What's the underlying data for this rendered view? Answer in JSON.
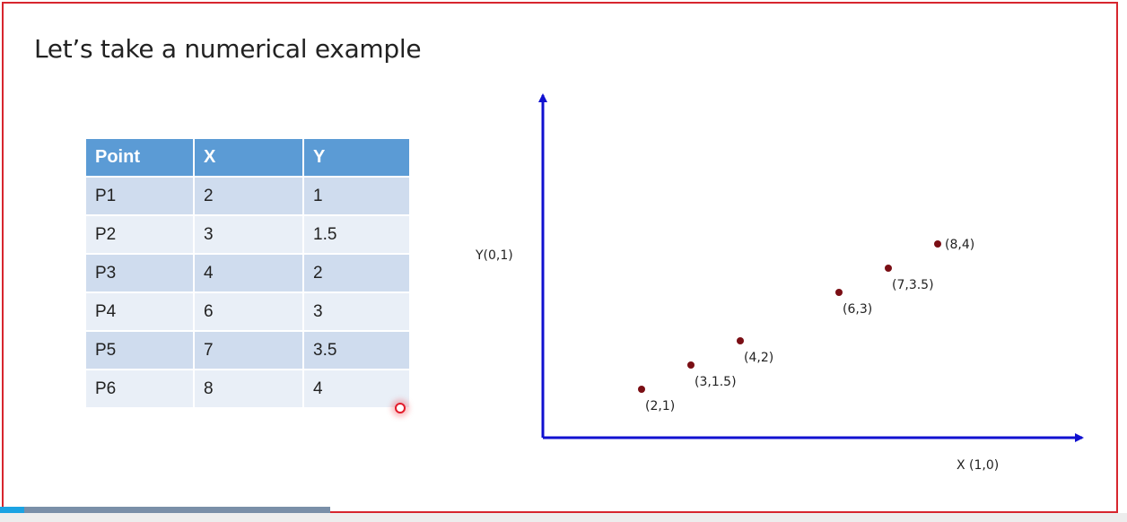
{
  "slide": {
    "title": "Let’s take a numerical example"
  },
  "table": {
    "headers": [
      "Point",
      "X",
      "Y"
    ],
    "rows": [
      [
        "P1",
        "2",
        "1"
      ],
      [
        "P2",
        "3",
        "1.5"
      ],
      [
        "P3",
        "4",
        "2"
      ],
      [
        "P4",
        "6",
        "3"
      ],
      [
        "P5",
        "7",
        "3.5"
      ],
      [
        "P6",
        "8",
        "4"
      ]
    ]
  },
  "chart_data": {
    "type": "scatter",
    "title": "",
    "xlabel": "X (1,0)",
    "ylabel": "Y(0,1)",
    "xlim": [
      0,
      11
    ],
    "ylim": [
      0,
      5.5
    ],
    "grid": false,
    "legend": "none",
    "axis_color": "#1010d0",
    "point_color": "#7a0e14",
    "points": [
      {
        "x": 2,
        "y": 1,
        "label": "(2,1)",
        "label_pos": "below"
      },
      {
        "x": 3,
        "y": 1.5,
        "label": "(3,1.5)",
        "label_pos": "below"
      },
      {
        "x": 4,
        "y": 2,
        "label": "(4,2)",
        "label_pos": "below"
      },
      {
        "x": 6,
        "y": 3,
        "label": "(6,3)",
        "label_pos": "below"
      },
      {
        "x": 7,
        "y": 3.5,
        "label": "(7,3.5)",
        "label_pos": "below"
      },
      {
        "x": 8,
        "y": 4,
        "label": "(8,4)",
        "label_pos": "right"
      }
    ]
  },
  "video": {
    "progress": 0.074
  }
}
